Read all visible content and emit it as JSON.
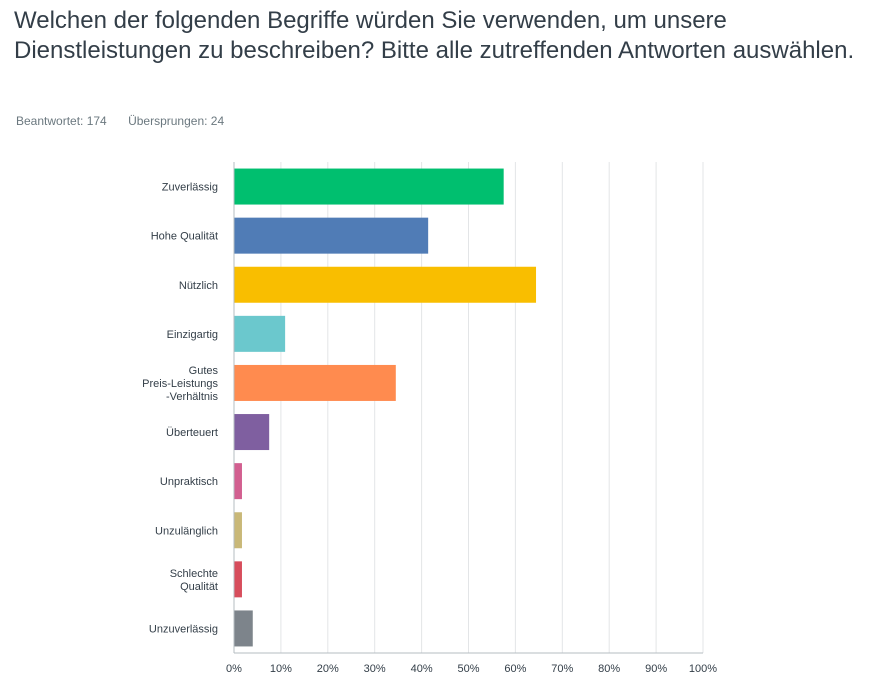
{
  "question": {
    "title": "Welchen der folgenden Begriffe würden Sie verwenden, um unsere Dienstleistungen zu beschreiben? Bitte alle zutreffenden Antworten auswählen."
  },
  "stats": {
    "answered_label": "Beantwortet: 174",
    "skipped_label": "Übersprungen: 24"
  },
  "chart_data": {
    "type": "bar",
    "orientation": "horizontal",
    "categories": [
      "Zuverlässig",
      "Hohe Qualität",
      "Nützlich",
      "Einzigartig",
      "Gutes Preis-Leistungs -Verhältnis",
      "Überteuert",
      "Unpraktisch",
      "Unzulänglich",
      "Schlechte Qualität",
      "Unzuverlässig"
    ],
    "category_lines": [
      [
        "Zuverlässig"
      ],
      [
        "Hohe Qualität"
      ],
      [
        "Nützlich"
      ],
      [
        "Einzigartig"
      ],
      [
        "Gutes",
        "Preis-Leistungs",
        "-Verhältnis"
      ],
      [
        "Überteuert"
      ],
      [
        "Unpraktisch"
      ],
      [
        "Unzulänglich"
      ],
      [
        "Schlechte",
        "Qualität"
      ],
      [
        "Unzuverlässig"
      ]
    ],
    "values": [
      57.5,
      41.4,
      64.4,
      10.9,
      34.5,
      7.5,
      1.7,
      1.7,
      1.7,
      4.0
    ],
    "colors": [
      "#00bf6f",
      "#507cb6",
      "#f9be00",
      "#6bc8cd",
      "#ff8b4f",
      "#7f5fa0",
      "#d25f90",
      "#c9b878",
      "#d74d5c",
      "#7d848b"
    ],
    "xlim": [
      0,
      100
    ],
    "ticks": [
      0,
      10,
      20,
      30,
      40,
      50,
      60,
      70,
      80,
      90,
      100
    ],
    "tick_labels": [
      "0%",
      "10%",
      "20%",
      "30%",
      "40%",
      "50%",
      "60%",
      "70%",
      "80%",
      "90%",
      "100%"
    ],
    "grid": true,
    "title": "",
    "xlabel": "",
    "ylabel": ""
  }
}
